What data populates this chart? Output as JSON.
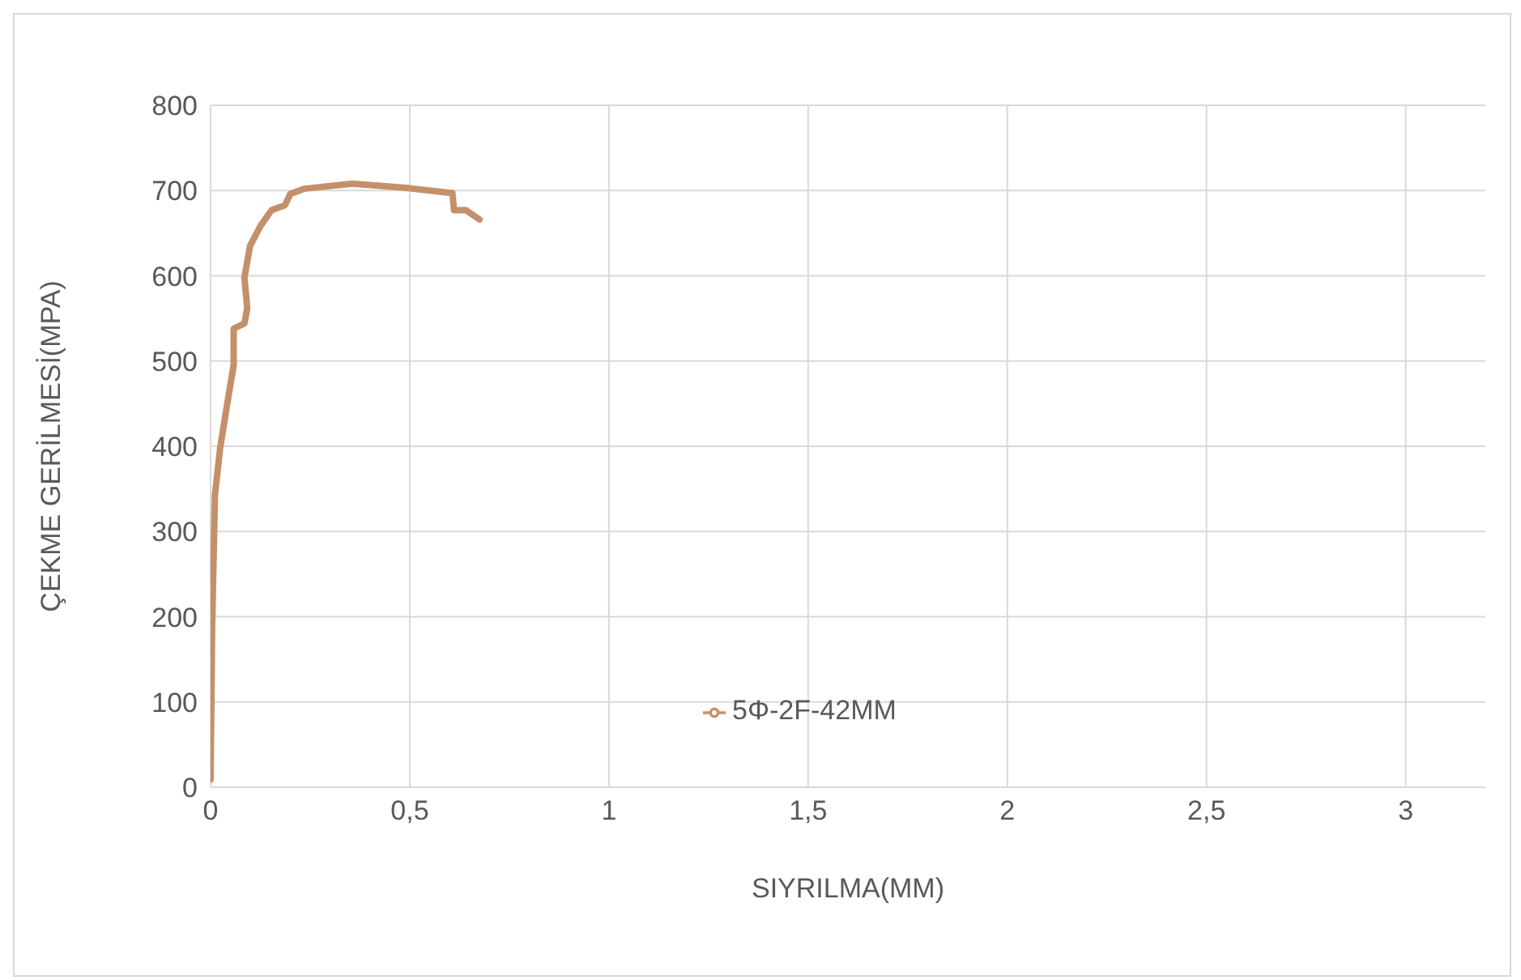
{
  "chart_data": {
    "type": "line",
    "xlabel": "SIYRILMA(MM)",
    "ylabel": "ÇEKME GERİLMESİ(MPA)",
    "xlim": [
      0,
      3.2
    ],
    "xticks": [
      {
        "value": 0,
        "label": "0"
      },
      {
        "value": 0.5,
        "label": "0,5"
      },
      {
        "value": 1,
        "label": "1"
      },
      {
        "value": 1.5,
        "label": "1,5"
      },
      {
        "value": 2,
        "label": "2"
      },
      {
        "value": 2.5,
        "label": "2,5"
      },
      {
        "value": 3,
        "label": "3"
      }
    ],
    "ylim": [
      0,
      800
    ],
    "yticks": [
      0,
      100,
      200,
      300,
      400,
      500,
      600,
      700,
      800
    ],
    "grid": true,
    "legend": "center",
    "marker": "none",
    "line_style": "solid",
    "x": [
      0,
      0.004,
      0.011,
      0.024,
      0.045,
      0.058,
      0.058,
      0.085,
      0.092,
      0.085,
      0.099,
      0.126,
      0.153,
      0.187,
      0.2,
      0.234,
      0.356,
      0.492,
      0.607,
      0.611,
      0.641,
      0.675
    ],
    "series": [
      {
        "name": "5Φ-2F-42MM",
        "color": "#c4906a",
        "values": [
          9,
          191,
          343,
          398,
          459,
          495,
          538,
          544,
          562,
          598,
          635,
          659,
          677,
          683,
          696,
          702,
          708,
          703,
          697,
          677,
          677,
          666
        ]
      }
    ]
  }
}
